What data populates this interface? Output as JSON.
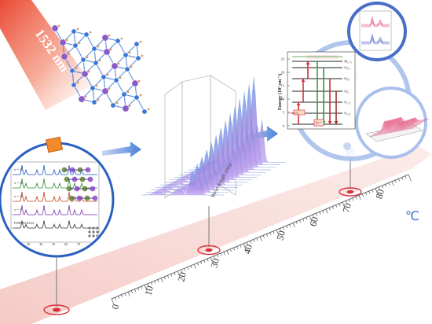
{
  "laser": {
    "wavelength_label": "1532 nm",
    "beam_color": "#e8402a"
  },
  "xrd_panel": {
    "curve_labels": [
      "x = 20",
      "x = 15",
      "x = 10",
      "x = 5",
      "PDF#20-0224"
    ],
    "curve_colors": [
      "#1a56c4",
      "#2f8a3a",
      "#c4401a",
      "#7a2fb0",
      "#333333"
    ],
    "axis_ticks": [
      "20",
      "30",
      "40",
      "50",
      "60",
      "70",
      "80"
    ]
  },
  "spectrum_3d": {
    "axis_label": "Wave length (nm)",
    "surface_color": "#8aa6e6"
  },
  "energy_diagram": {
    "ylabel": "Energy (10³ cm⁻¹)",
    "y_ticks": [
      "0",
      "5",
      "10",
      "15",
      "20",
      "25"
    ],
    "levels": [
      "²H₁₁/₂",
      "⁴S₃/₂",
      "⁴F₉/₂",
      "⁴I₉/₂",
      "⁴I₁₁/₂",
      "⁴I₁₃/₂"
    ],
    "pump_label": "1532 nm",
    "ion_label": "Er³⁺"
  },
  "temperature_axis": {
    "tick_labels": [
      "0",
      "10",
      "20",
      "30",
      "40",
      "50",
      "60",
      "70",
      "80"
    ],
    "unit_label": "℃",
    "track_color": "#f2b8b2"
  },
  "colors": {
    "accent_blue": "#4a7fd8",
    "circle_blue": "#9fb7e8",
    "marker_red": "#d6303a"
  }
}
